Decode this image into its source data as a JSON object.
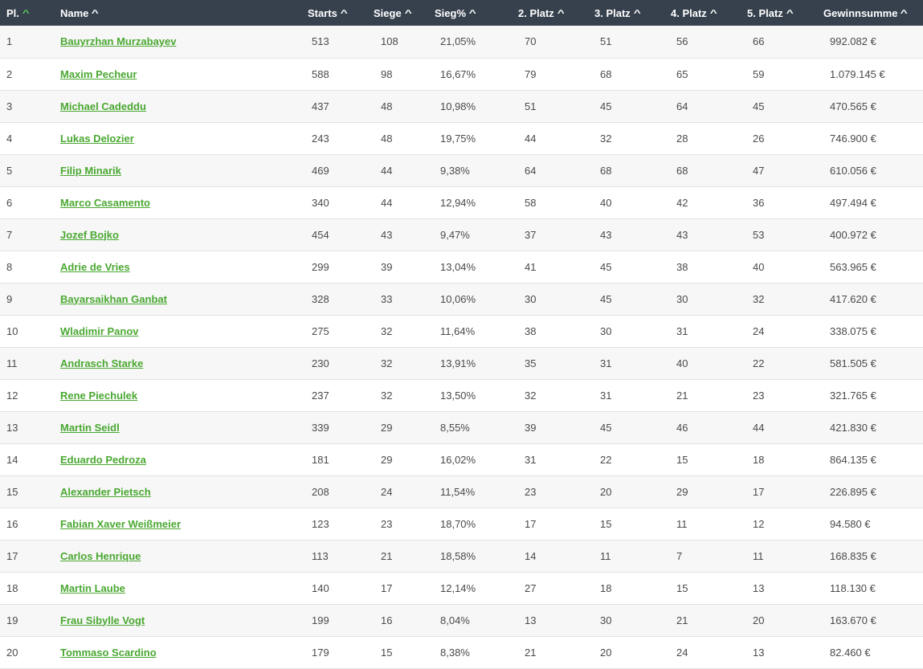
{
  "table": {
    "columns": [
      {
        "label": "Pl.",
        "active": true
      },
      {
        "label": "Name",
        "active": false
      },
      {
        "label": "Starts",
        "active": false
      },
      {
        "label": "Siege",
        "active": false
      },
      {
        "label": "Sieg%",
        "active": false
      },
      {
        "label": "2. Platz",
        "active": false
      },
      {
        "label": "3. Platz",
        "active": false
      },
      {
        "label": "4. Platz",
        "active": false
      },
      {
        "label": "5. Platz",
        "active": false
      },
      {
        "label": "Gewinnsumme",
        "active": false
      }
    ],
    "sort_icon": "chevron-up-icon",
    "sort_active_color": "#5cc35c",
    "header_bg": "#37414d",
    "link_color": "#4aa832",
    "rows": [
      [
        "1",
        "Bauyrzhan Murzabayev",
        "513",
        "108",
        "21,05%",
        "70",
        "51",
        "56",
        "66",
        "992.082 €"
      ],
      [
        "2",
        "Maxim Pecheur",
        "588",
        "98",
        "16,67%",
        "79",
        "68",
        "65",
        "59",
        "1.079.145 €"
      ],
      [
        "3",
        "Michael Cadeddu",
        "437",
        "48",
        "10,98%",
        "51",
        "45",
        "64",
        "45",
        "470.565 €"
      ],
      [
        "4",
        "Lukas Delozier",
        "243",
        "48",
        "19,75%",
        "44",
        "32",
        "28",
        "26",
        "746.900 €"
      ],
      [
        "5",
        "Filip Minarik",
        "469",
        "44",
        "9,38%",
        "64",
        "68",
        "68",
        "47",
        "610.056 €"
      ],
      [
        "6",
        "Marco Casamento",
        "340",
        "44",
        "12,94%",
        "58",
        "40",
        "42",
        "36",
        "497.494 €"
      ],
      [
        "7",
        "Jozef Bojko",
        "454",
        "43",
        "9,47%",
        "37",
        "43",
        "43",
        "53",
        "400.972 €"
      ],
      [
        "8",
        "Adrie de Vries",
        "299",
        "39",
        "13,04%",
        "41",
        "45",
        "38",
        "40",
        "563.965 €"
      ],
      [
        "9",
        "Bayarsaikhan Ganbat",
        "328",
        "33",
        "10,06%",
        "30",
        "45",
        "30",
        "32",
        "417.620 €"
      ],
      [
        "10",
        "Wladimir Panov",
        "275",
        "32",
        "11,64%",
        "38",
        "30",
        "31",
        "24",
        "338.075 €"
      ],
      [
        "11",
        "Andrasch Starke",
        "230",
        "32",
        "13,91%",
        "35",
        "31",
        "40",
        "22",
        "581.505 €"
      ],
      [
        "12",
        "Rene Piechulek",
        "237",
        "32",
        "13,50%",
        "32",
        "31",
        "21",
        "23",
        "321.765 €"
      ],
      [
        "13",
        "Martin Seidl",
        "339",
        "29",
        "8,55%",
        "39",
        "45",
        "46",
        "44",
        "421.830 €"
      ],
      [
        "14",
        "Eduardo Pedroza",
        "181",
        "29",
        "16,02%",
        "31",
        "22",
        "15",
        "18",
        "864.135 €"
      ],
      [
        "15",
        "Alexander Pietsch",
        "208",
        "24",
        "11,54%",
        "23",
        "20",
        "29",
        "17",
        "226.895 €"
      ],
      [
        "16",
        "Fabian Xaver Weißmeier",
        "123",
        "23",
        "18,70%",
        "17",
        "15",
        "11",
        "12",
        "94.580 €"
      ],
      [
        "17",
        "Carlos Henrique",
        "113",
        "21",
        "18,58%",
        "14",
        "11",
        "7",
        "11",
        "168.835 €"
      ],
      [
        "18",
        "Martin Laube",
        "140",
        "17",
        "12,14%",
        "27",
        "18",
        "15",
        "13",
        "118.130 €"
      ],
      [
        "19",
        "Frau Sibylle Vogt",
        "199",
        "16",
        "8,04%",
        "13",
        "30",
        "21",
        "20",
        "163.670 €"
      ],
      [
        "20",
        "Tommaso Scardino",
        "179",
        "15",
        "8,38%",
        "21",
        "20",
        "24",
        "13",
        "82.460 €"
      ]
    ]
  }
}
